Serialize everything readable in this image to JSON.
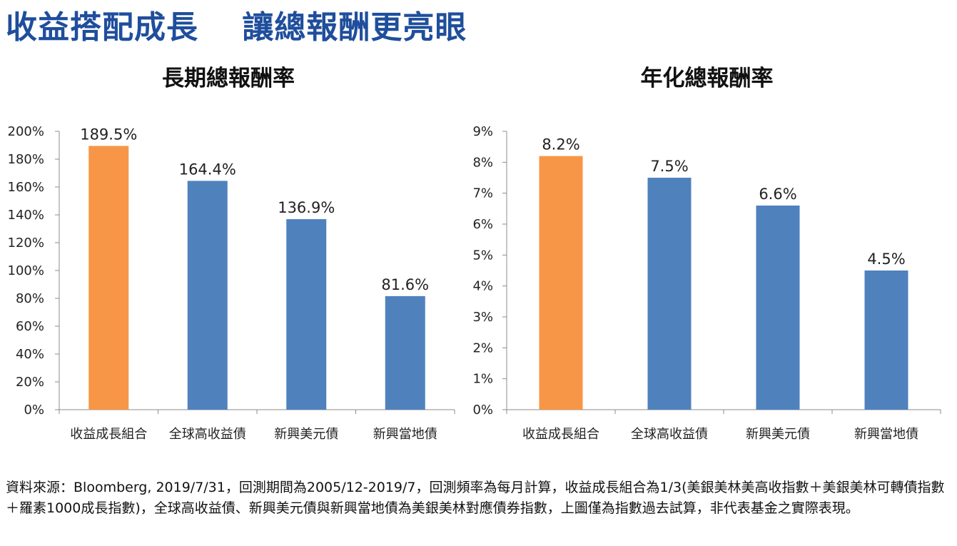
{
  "headline": "收益搭配成長　 讓總報酬更亮眼",
  "footnote": "資料來源：Bloomberg, 2019/7/31，回測期間為2005/12-2019/7，回測頻率為每月計算，收益成長組合為1/3(美銀美林美高收指數＋美銀美林可轉債指數＋羅素1000成長指數)，全球高收益債、新興美元債與新興當地債為美銀美林對應債券指數，上圖僅為指數過去試算，非代表基金之實際表現。",
  "colors": {
    "highlight": "#f79646",
    "bar": "#4f81bd",
    "axis": "#8c8c8c",
    "headline": "#1f4e9c"
  },
  "chart_data": [
    {
      "type": "bar",
      "title": "長期總報酬率",
      "categories": [
        "收益成長組合",
        "全球高收益債",
        "新興美元債",
        "新興當地債"
      ],
      "values": [
        189.5,
        164.4,
        136.9,
        81.6
      ],
      "value_labels": [
        "189.5%",
        "164.4%",
        "136.9%",
        "81.6%"
      ],
      "highlight_index": 0,
      "ylim": [
        0,
        200
      ],
      "yticks": [
        0,
        20,
        40,
        60,
        80,
        100,
        120,
        140,
        160,
        180,
        200
      ],
      "ytick_labels": [
        "0%",
        "20%",
        "40%",
        "60%",
        "80%",
        "100%",
        "120%",
        "140%",
        "160%",
        "180%",
        "200%"
      ],
      "xlabel": "",
      "ylabel": "",
      "grid": false,
      "legend": false
    },
    {
      "type": "bar",
      "title": "年化總報酬率",
      "categories": [
        "收益成長組合",
        "全球高收益債",
        "新興美元債",
        "新興當地債"
      ],
      "values": [
        8.2,
        7.5,
        6.6,
        4.5
      ],
      "value_labels": [
        "8.2%",
        "7.5%",
        "6.6%",
        "4.5%"
      ],
      "highlight_index": 0,
      "ylim": [
        0,
        9
      ],
      "yticks": [
        0,
        1,
        2,
        3,
        4,
        5,
        6,
        7,
        8,
        9
      ],
      "ytick_labels": [
        "0%",
        "1%",
        "2%",
        "3%",
        "4%",
        "5%",
        "6%",
        "7%",
        "8%",
        "9%"
      ],
      "xlabel": "",
      "ylabel": "",
      "grid": false,
      "legend": false
    }
  ]
}
